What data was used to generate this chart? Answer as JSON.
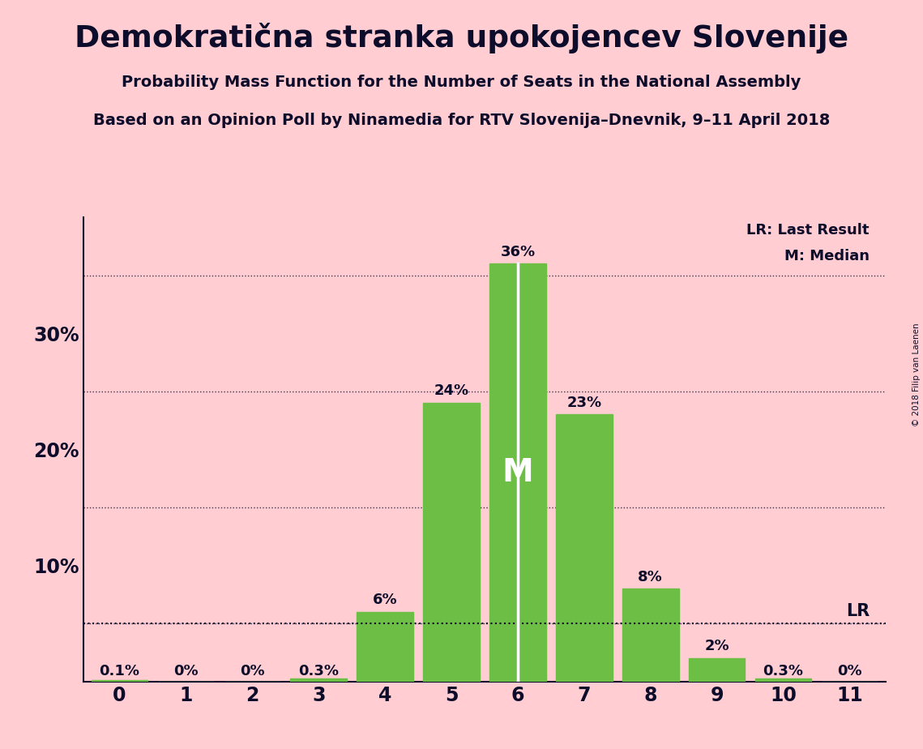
{
  "title": "Demokratična stranka upokojencev Slovenije",
  "subtitle1": "Probability Mass Function for the Number of Seats in the National Assembly",
  "subtitle2": "Based on an Opinion Poll by Ninamedia for RTV Slovenija–Dnevnik, 9–11 April 2018",
  "copyright": "© 2018 Filip van Laenen",
  "categories": [
    0,
    1,
    2,
    3,
    4,
    5,
    6,
    7,
    8,
    9,
    10,
    11
  ],
  "values": [
    0.001,
    0.0,
    0.0,
    0.003,
    0.06,
    0.24,
    0.36,
    0.23,
    0.08,
    0.02,
    0.003,
    0.0
  ],
  "labels": [
    "0.1%",
    "0%",
    "0%",
    "0.3%",
    "6%",
    "24%",
    "36%",
    "23%",
    "8%",
    "2%",
    "0.3%",
    "0%"
  ],
  "bar_color": "#6DBE45",
  "background_color": "#FFCDD2",
  "text_color": "#0D0D2B",
  "median_idx": 6,
  "last_result": 0.05,
  "lr_label": "LR",
  "median_label": "M",
  "legend_lr": "LR: Last Result",
  "legend_m": "M: Median",
  "ytick_vals": [
    0.1,
    0.2,
    0.3
  ],
  "ytick_labels": [
    "10%",
    "20%",
    "30%"
  ],
  "grid_lines": [
    0.05,
    0.15,
    0.25,
    0.35
  ],
  "ylim": [
    0,
    0.4
  ],
  "bar_width": 0.85
}
